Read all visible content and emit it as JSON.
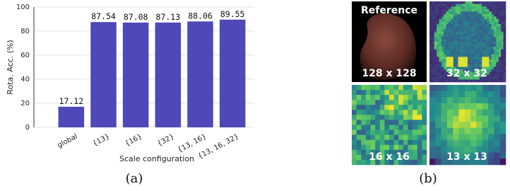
{
  "chart_data": {
    "type": "bar",
    "y_label": "Rota. Acc. (%)",
    "x_label": "Scale configuration",
    "categories": [
      "global",
      "{13}",
      "{16}",
      "{32}",
      "{13, 16}",
      "{13, 16, 32}"
    ],
    "values": [
      17.12,
      87.54,
      87.08,
      87.13,
      88.06,
      89.55
    ],
    "color": "#4f48b8",
    "ylim": [
      0,
      100
    ],
    "yticks": [
      0,
      20,
      40,
      60,
      80,
      100
    ],
    "grid": true
  },
  "panels": [
    {
      "title": "Reference",
      "label": "128 x 128"
    },
    {
      "label": "32 x 32"
    },
    {
      "label": "16 x 16"
    },
    {
      "label": "13 x 13"
    }
  ],
  "captions": [
    "(a)",
    "(b)"
  ]
}
